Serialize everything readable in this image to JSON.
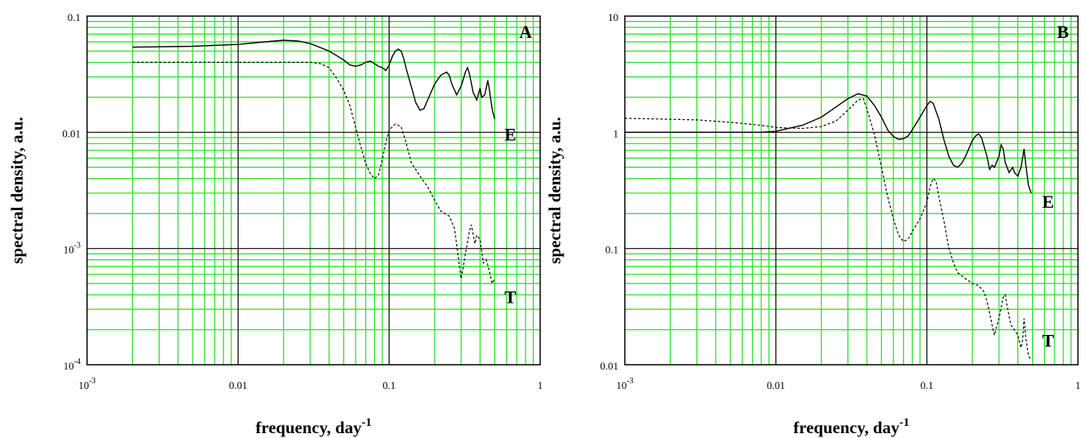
{
  "chart_data": [
    {
      "type": "line",
      "panel_letter": "A",
      "xscale": "log",
      "yscale": "log",
      "xlim": [
        0.001,
        1
      ],
      "ylim": [
        0.0001,
        0.1
      ],
      "grid": true,
      "grid_color": "#22dd22",
      "major_grid_color": "#000000",
      "xlabel": "frequency, day",
      "xlabel_sup": "-1",
      "ylabel": "spectral density, a.u.",
      "x_ticks": [
        {
          "v": 0.001,
          "base": "10",
          "sup": "-3"
        },
        {
          "v": 0.01,
          "base": "0.01",
          "sup": ""
        },
        {
          "v": 0.1,
          "base": "0.1",
          "sup": ""
        },
        {
          "v": 1,
          "base": "1",
          "sup": ""
        }
      ],
      "y_ticks": [
        {
          "v": 0.0001,
          "base": "10",
          "sup": "-4"
        },
        {
          "v": 0.001,
          "base": "10",
          "sup": "-3"
        },
        {
          "v": 0.01,
          "base": "0.01",
          "sup": ""
        },
        {
          "v": 0.1,
          "base": "0.1",
          "sup": ""
        }
      ],
      "series": [
        {
          "name": "E",
          "style": "solid",
          "label_at": [
            0.58,
            0.0095
          ],
          "points": [
            [
              0.002,
              0.054
            ],
            [
              0.005,
              0.055
            ],
            [
              0.01,
              0.057
            ],
            [
              0.015,
              0.06
            ],
            [
              0.02,
              0.062
            ],
            [
              0.025,
              0.061
            ],
            [
              0.03,
              0.058
            ],
            [
              0.04,
              0.05
            ],
            [
              0.05,
              0.042
            ],
            [
              0.055,
              0.038
            ],
            [
              0.06,
              0.037
            ],
            [
              0.065,
              0.038
            ],
            [
              0.07,
              0.04
            ],
            [
              0.075,
              0.041
            ],
            [
              0.08,
              0.039
            ],
            [
              0.085,
              0.037
            ],
            [
              0.09,
              0.036
            ],
            [
              0.095,
              0.034
            ],
            [
              0.1,
              0.038
            ],
            [
              0.105,
              0.045
            ],
            [
              0.11,
              0.05
            ],
            [
              0.115,
              0.052
            ],
            [
              0.12,
              0.05
            ],
            [
              0.125,
              0.043
            ],
            [
              0.13,
              0.035
            ],
            [
              0.14,
              0.025
            ],
            [
              0.15,
              0.018
            ],
            [
              0.16,
              0.0155
            ],
            [
              0.17,
              0.016
            ],
            [
              0.18,
              0.019
            ],
            [
              0.2,
              0.026
            ],
            [
              0.22,
              0.031
            ],
            [
              0.24,
              0.033
            ],
            [
              0.25,
              0.031
            ],
            [
              0.26,
              0.026
            ],
            [
              0.28,
              0.021
            ],
            [
              0.3,
              0.025
            ],
            [
              0.32,
              0.033
            ],
            [
              0.33,
              0.036
            ],
            [
              0.34,
              0.032
            ],
            [
              0.36,
              0.022
            ],
            [
              0.38,
              0.019
            ],
            [
              0.4,
              0.024
            ],
            [
              0.41,
              0.02
            ],
            [
              0.43,
              0.021
            ],
            [
              0.45,
              0.028
            ],
            [
              0.46,
              0.024
            ],
            [
              0.48,
              0.016
            ],
            [
              0.5,
              0.013
            ]
          ]
        },
        {
          "name": "T",
          "style": "dashed",
          "label_at": [
            0.58,
            0.00038
          ],
          "points": [
            [
              0.002,
              0.04
            ],
            [
              0.01,
              0.04
            ],
            [
              0.02,
              0.04
            ],
            [
              0.03,
              0.04
            ],
            [
              0.035,
              0.039
            ],
            [
              0.04,
              0.036
            ],
            [
              0.045,
              0.029
            ],
            [
              0.05,
              0.023
            ],
            [
              0.055,
              0.017
            ],
            [
              0.06,
              0.011
            ],
            [
              0.065,
              0.0075
            ],
            [
              0.07,
              0.0054
            ],
            [
              0.075,
              0.0044
            ],
            [
              0.08,
              0.004
            ],
            [
              0.085,
              0.0043
            ],
            [
              0.09,
              0.0058
            ],
            [
              0.095,
              0.0082
            ],
            [
              0.1,
              0.0105
            ],
            [
              0.11,
              0.0118
            ],
            [
              0.12,
              0.0112
            ],
            [
              0.13,
              0.008
            ],
            [
              0.14,
              0.0055
            ],
            [
              0.16,
              0.0042
            ],
            [
              0.18,
              0.0034
            ],
            [
              0.2,
              0.0026
            ],
            [
              0.22,
              0.0021
            ],
            [
              0.25,
              0.0019
            ],
            [
              0.27,
              0.0015
            ],
            [
              0.28,
              0.0011
            ],
            [
              0.29,
              0.00075
            ],
            [
              0.3,
              0.00055
            ],
            [
              0.32,
              0.0009
            ],
            [
              0.34,
              0.0014
            ],
            [
              0.35,
              0.0016
            ],
            [
              0.37,
              0.0011
            ],
            [
              0.38,
              0.0013
            ],
            [
              0.4,
              0.0012
            ],
            [
              0.42,
              0.00075
            ],
            [
              0.44,
              0.0008
            ],
            [
              0.46,
              0.00065
            ],
            [
              0.48,
              0.0005
            ],
            [
              0.5,
              0.00055
            ]
          ]
        }
      ]
    },
    {
      "type": "line",
      "panel_letter": "B",
      "xscale": "log",
      "yscale": "log",
      "xlim": [
        0.001,
        1
      ],
      "ylim": [
        0.01,
        10
      ],
      "grid": true,
      "grid_color": "#22dd22",
      "major_grid_color": "#000000",
      "xlabel": "frequency, day",
      "xlabel_sup": "-1",
      "ylabel": "spectral density, a.u.",
      "x_ticks": [
        {
          "v": 0.001,
          "base": "10",
          "sup": "-3"
        },
        {
          "v": 0.01,
          "base": "0.01",
          "sup": ""
        },
        {
          "v": 0.1,
          "base": "0.1",
          "sup": ""
        },
        {
          "v": 1,
          "base": "1",
          "sup": ""
        }
      ],
      "y_ticks": [
        {
          "v": 0.01,
          "base": "0.01",
          "sup": ""
        },
        {
          "v": 0.1,
          "base": "0.1",
          "sup": ""
        },
        {
          "v": 1,
          "base": "1",
          "sup": ""
        },
        {
          "v": 10,
          "base": "10",
          "sup": ""
        }
      ],
      "series": [
        {
          "name": "E",
          "style": "solid",
          "label_at": [
            0.58,
            0.25
          ],
          "points": [
            [
              0.001,
              1.0
            ],
            [
              0.005,
              1.0
            ],
            [
              0.008,
              1.0
            ],
            [
              0.01,
              1.02
            ],
            [
              0.015,
              1.15
            ],
            [
              0.02,
              1.35
            ],
            [
              0.025,
              1.65
            ],
            [
              0.03,
              1.95
            ],
            [
              0.035,
              2.15
            ],
            [
              0.04,
              2.05
            ],
            [
              0.045,
              1.7
            ],
            [
              0.05,
              1.35
            ],
            [
              0.055,
              1.05
            ],
            [
              0.06,
              0.92
            ],
            [
              0.065,
              0.87
            ],
            [
              0.07,
              0.88
            ],
            [
              0.075,
              0.93
            ],
            [
              0.08,
              1.05
            ],
            [
              0.09,
              1.35
            ],
            [
              0.1,
              1.7
            ],
            [
              0.105,
              1.85
            ],
            [
              0.11,
              1.78
            ],
            [
              0.12,
              1.3
            ],
            [
              0.13,
              0.85
            ],
            [
              0.14,
              0.62
            ],
            [
              0.15,
              0.52
            ],
            [
              0.16,
              0.5
            ],
            [
              0.17,
              0.54
            ],
            [
              0.18,
              0.62
            ],
            [
              0.2,
              0.85
            ],
            [
              0.21,
              0.93
            ],
            [
              0.22,
              0.97
            ],
            [
              0.23,
              0.9
            ],
            [
              0.25,
              0.62
            ],
            [
              0.26,
              0.48
            ],
            [
              0.27,
              0.52
            ],
            [
              0.28,
              0.5
            ],
            [
              0.3,
              0.62
            ],
            [
              0.31,
              0.78
            ],
            [
              0.32,
              0.72
            ],
            [
              0.33,
              0.55
            ],
            [
              0.35,
              0.45
            ],
            [
              0.37,
              0.5
            ],
            [
              0.38,
              0.45
            ],
            [
              0.4,
              0.42
            ],
            [
              0.42,
              0.5
            ],
            [
              0.44,
              0.72
            ],
            [
              0.45,
              0.55
            ],
            [
              0.47,
              0.35
            ],
            [
              0.49,
              0.3
            ]
          ]
        },
        {
          "name": "T",
          "style": "dashed",
          "label_at": [
            0.58,
            0.016
          ],
          "points": [
            [
              0.001,
              1.32
            ],
            [
              0.003,
              1.28
            ],
            [
              0.005,
              1.22
            ],
            [
              0.008,
              1.15
            ],
            [
              0.01,
              1.1
            ],
            [
              0.015,
              1.08
            ],
            [
              0.02,
              1.12
            ],
            [
              0.025,
              1.25
            ],
            [
              0.03,
              1.55
            ],
            [
              0.035,
              1.9
            ],
            [
              0.038,
              1.95
            ],
            [
              0.04,
              1.6
            ],
            [
              0.045,
              0.95
            ],
            [
              0.05,
              0.5
            ],
            [
              0.055,
              0.28
            ],
            [
              0.06,
              0.18
            ],
            [
              0.065,
              0.13
            ],
            [
              0.07,
              0.115
            ],
            [
              0.075,
              0.12
            ],
            [
              0.08,
              0.14
            ],
            [
              0.09,
              0.18
            ],
            [
              0.1,
              0.25
            ],
            [
              0.105,
              0.34
            ],
            [
              0.11,
              0.4
            ],
            [
              0.115,
              0.38
            ],
            [
              0.12,
              0.28
            ],
            [
              0.13,
              0.17
            ],
            [
              0.14,
              0.1
            ],
            [
              0.15,
              0.075
            ],
            [
              0.16,
              0.062
            ],
            [
              0.18,
              0.055
            ],
            [
              0.2,
              0.05
            ],
            [
              0.22,
              0.048
            ],
            [
              0.24,
              0.042
            ],
            [
              0.25,
              0.035
            ],
            [
              0.26,
              0.028
            ],
            [
              0.27,
              0.022
            ],
            [
              0.28,
              0.018
            ],
            [
              0.3,
              0.025
            ],
            [
              0.32,
              0.038
            ],
            [
              0.33,
              0.04
            ],
            [
              0.34,
              0.032
            ],
            [
              0.36,
              0.022
            ],
            [
              0.38,
              0.02
            ],
            [
              0.4,
              0.018
            ],
            [
              0.42,
              0.014
            ],
            [
              0.43,
              0.016
            ],
            [
              0.44,
              0.025
            ],
            [
              0.45,
              0.018
            ],
            [
              0.47,
              0.012
            ],
            [
              0.49,
              0.011
            ]
          ]
        }
      ]
    }
  ]
}
